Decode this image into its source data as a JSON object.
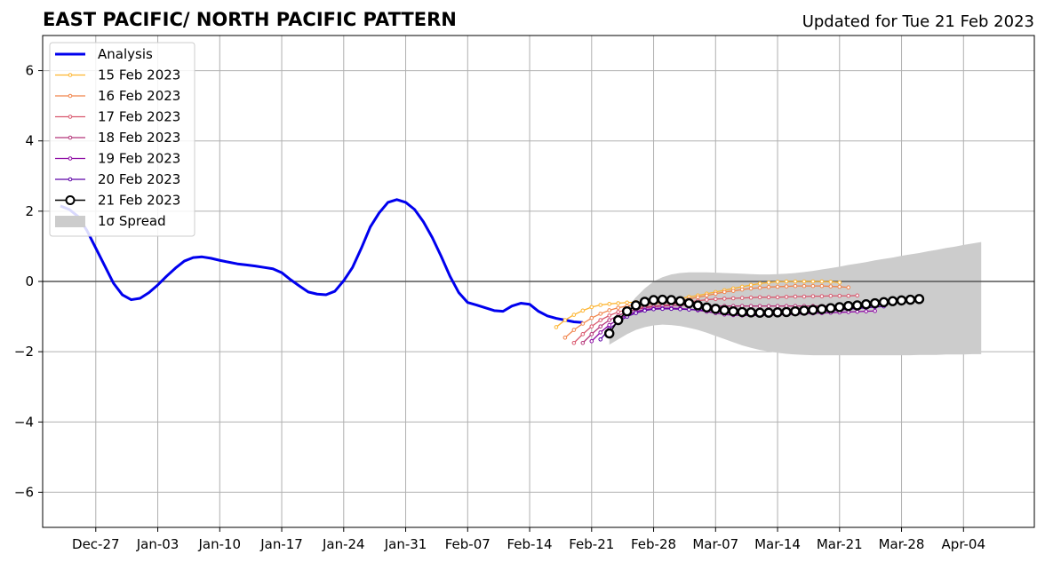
{
  "title": "EAST PACIFIC/ NORTH PACIFIC PATTERN",
  "updated": "Updated for Tue 21 Feb 2023",
  "chart_data": {
    "type": "line",
    "title": "EAST PACIFIC/ NORTH PACIFIC PATTERN",
    "subtitle": "Updated for Tue 21 Feb 2023",
    "xlabel": "",
    "ylabel": "",
    "xlim": [
      "2022-12-21",
      "2023-04-12"
    ],
    "ylim": [
      -7,
      7
    ],
    "grid": true,
    "legend_position": "top-left",
    "x_ticks": [
      "2022-12-27",
      "2023-01-03",
      "2023-01-10",
      "2023-01-17",
      "2023-01-24",
      "2023-01-31",
      "2023-02-07",
      "2023-02-14",
      "2023-02-21",
      "2023-02-28",
      "2023-03-07",
      "2023-03-14",
      "2023-03-21",
      "2023-03-28",
      "2023-04-04"
    ],
    "x_tick_labels": [
      "Dec-27",
      "Jan-03",
      "Jan-10",
      "Jan-17",
      "Jan-24",
      "Jan-31",
      "Feb-07",
      "Feb-14",
      "Feb-21",
      "Feb-28",
      "Mar-07",
      "Mar-14",
      "Mar-21",
      "Mar-28",
      "Apr-04"
    ],
    "y_ticks": [
      6,
      4,
      2,
      0,
      -2,
      -4,
      -6
    ],
    "y_tick_labels": [
      "6",
      "4",
      "2",
      "0",
      "−2",
      "−4",
      "−6"
    ],
    "analysis": {
      "name": "Analysis",
      "color": "#0000ee",
      "start": "2022-12-23",
      "values": [
        2.15,
        2.05,
        1.85,
        1.45,
        0.95,
        0.45,
        -0.05,
        -0.38,
        -0.52,
        -0.48,
        -0.32,
        -0.1,
        0.15,
        0.38,
        0.58,
        0.68,
        0.7,
        0.66,
        0.6,
        0.55,
        0.5,
        0.47,
        0.44,
        0.4,
        0.36,
        0.25,
        0.05,
        -0.13,
        -0.3,
        -0.36,
        -0.38,
        -0.28,
        0.02,
        0.4,
        0.95,
        1.55,
        1.95,
        2.25,
        2.33,
        2.25,
        2.05,
        1.7,
        1.25,
        0.72,
        0.15,
        -0.32,
        -0.6,
        -0.67,
        -0.75,
        -0.83,
        -0.85,
        -0.7,
        -0.62,
        -0.65,
        -0.85,
        -0.98,
        -1.05,
        -1.1,
        -1.15,
        -1.17
      ]
    },
    "forecasts": [
      {
        "name": "15 Feb 2023",
        "color": "#fdb42f",
        "start": "2023-02-17",
        "values": [
          -1.3,
          -1.1,
          -0.95,
          -0.83,
          -0.73,
          -0.67,
          -0.64,
          -0.62,
          -0.6,
          -0.59,
          -0.58,
          -0.57,
          -0.55,
          -0.52,
          -0.48,
          -0.44,
          -0.4,
          -0.35,
          -0.3,
          -0.25,
          -0.2,
          -0.15,
          -0.1,
          -0.06,
          -0.03,
          -0.01,
          0.0,
          0.0,
          0.0,
          0.0,
          0.0,
          -0.01,
          -0.03
        ]
      },
      {
        "name": "16 Feb 2023",
        "color": "#f1844b",
        "start": "2023-02-18",
        "values": [
          -1.6,
          -1.38,
          -1.2,
          -1.04,
          -0.92,
          -0.82,
          -0.75,
          -0.7,
          -0.67,
          -0.65,
          -0.63,
          -0.61,
          -0.58,
          -0.55,
          -0.5,
          -0.45,
          -0.4,
          -0.35,
          -0.3,
          -0.27,
          -0.23,
          -0.2,
          -0.18,
          -0.16,
          -0.15,
          -0.14,
          -0.13,
          -0.13,
          -0.13,
          -0.13,
          -0.14,
          -0.15,
          -0.17
        ]
      },
      {
        "name": "17 Feb 2023",
        "color": "#d9586e",
        "start": "2023-02-19",
        "values": [
          -1.75,
          -1.5,
          -1.28,
          -1.1,
          -0.97,
          -0.87,
          -0.8,
          -0.75,
          -0.72,
          -0.7,
          -0.68,
          -0.65,
          -0.62,
          -0.58,
          -0.55,
          -0.52,
          -0.5,
          -0.49,
          -0.48,
          -0.47,
          -0.46,
          -0.45,
          -0.45,
          -0.45,
          -0.44,
          -0.43,
          -0.43,
          -0.42,
          -0.42,
          -0.41,
          -0.41,
          -0.41,
          -0.4
        ]
      },
      {
        "name": "18 Feb 2023",
        "color": "#b5367a",
        "start": "2023-02-20",
        "values": [
          -1.75,
          -1.5,
          -1.28,
          -1.1,
          -0.97,
          -0.87,
          -0.8,
          -0.75,
          -0.72,
          -0.7,
          -0.69,
          -0.68,
          -0.68,
          -0.68,
          -0.69,
          -0.7,
          -0.7,
          -0.7,
          -0.7,
          -0.7,
          -0.7,
          -0.7,
          -0.7,
          -0.7,
          -0.7,
          -0.7,
          -0.7,
          -0.7,
          -0.7,
          -0.7,
          -0.7,
          -0.7,
          -0.7
        ]
      },
      {
        "name": "19 Feb 2023",
        "color": "#8e0ca4",
        "start": "2023-02-21",
        "values": [
          -1.7,
          -1.45,
          -1.24,
          -1.08,
          -0.96,
          -0.86,
          -0.8,
          -0.77,
          -0.76,
          -0.76,
          -0.77,
          -0.79,
          -0.82,
          -0.86,
          -0.9,
          -0.94,
          -0.96,
          -0.97,
          -0.97,
          -0.97,
          -0.96,
          -0.95,
          -0.94,
          -0.93,
          -0.92,
          -0.91,
          -0.9,
          -0.89,
          -0.88,
          -0.87,
          -0.86,
          -0.85,
          -0.84
        ]
      },
      {
        "name": "20 Feb 2023",
        "color": "#5c01a6",
        "start": "2023-02-22",
        "values": [
          -1.65,
          -1.35,
          -1.15,
          -1.0,
          -0.9,
          -0.83,
          -0.79,
          -0.78,
          -0.78,
          -0.79,
          -0.8,
          -0.81,
          -0.82,
          -0.83,
          -0.84,
          -0.85,
          -0.86,
          -0.87,
          -0.88,
          -0.88,
          -0.88,
          -0.88,
          -0.87,
          -0.86,
          -0.85,
          -0.84,
          -0.83,
          -0.81,
          -0.79,
          -0.77,
          -0.75,
          -0.73,
          -0.71
        ]
      },
      {
        "name": "21 Feb 2023",
        "color": "#000000",
        "start": "2023-02-23",
        "values": [
          -1.48,
          -1.1,
          -0.85,
          -0.68,
          -0.58,
          -0.53,
          -0.52,
          -0.53,
          -0.56,
          -0.62,
          -0.68,
          -0.74,
          -0.78,
          -0.82,
          -0.85,
          -0.87,
          -0.88,
          -0.89,
          -0.89,
          -0.88,
          -0.87,
          -0.85,
          -0.83,
          -0.81,
          -0.79,
          -0.76,
          -0.73,
          -0.7,
          -0.68,
          -0.65,
          -0.62,
          -0.59,
          -0.56,
          -0.54,
          -0.52,
          -0.5
        ],
        "markers": "open-circle"
      }
    ],
    "spread": {
      "name": "1σ Spread",
      "color": "#cccccc",
      "start": "2023-02-23",
      "upper": [
        -1.5,
        -1.1,
        -0.75,
        -0.45,
        -0.2,
        0.0,
        0.12,
        0.2,
        0.24,
        0.26,
        0.26,
        0.26,
        0.25,
        0.24,
        0.23,
        0.22,
        0.21,
        0.2,
        0.2,
        0.21,
        0.22,
        0.24,
        0.27,
        0.3,
        0.34,
        0.38,
        0.42,
        0.47,
        0.51,
        0.55,
        0.6,
        0.64,
        0.68,
        0.73,
        0.77,
        0.81,
        0.86,
        0.9,
        0.95,
        0.99,
        1.04,
        1.08,
        1.12
      ],
      "lower": [
        -1.8,
        -1.65,
        -1.5,
        -1.38,
        -1.3,
        -1.25,
        -1.23,
        -1.24,
        -1.27,
        -1.32,
        -1.38,
        -1.46,
        -1.55,
        -1.64,
        -1.73,
        -1.82,
        -1.89,
        -1.95,
        -1.99,
        -2.03,
        -2.06,
        -2.08,
        -2.09,
        -2.1,
        -2.1,
        -2.1,
        -2.1,
        -2.1,
        -2.1,
        -2.1,
        -2.1,
        -2.1,
        -2.1,
        -2.1,
        -2.1,
        -2.09,
        -2.09,
        -2.09,
        -2.08,
        -2.08,
        -2.08,
        -2.07,
        -2.07
      ]
    }
  }
}
